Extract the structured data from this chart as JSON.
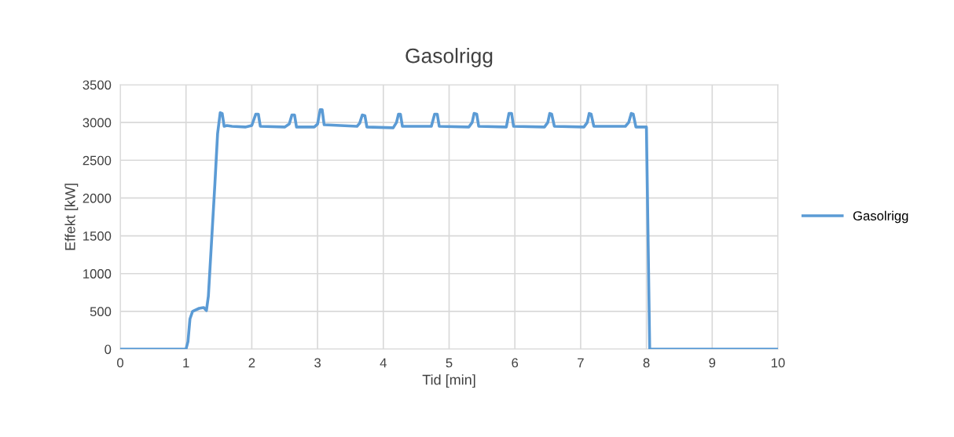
{
  "chart_data": {
    "type": "line",
    "title": "Gasolrigg",
    "xlabel": "Tid [min]",
    "ylabel": "Effekt [kW]",
    "xlim": [
      0,
      10
    ],
    "xticks": [
      0,
      1,
      2,
      3,
      4,
      5,
      6,
      7,
      8,
      9,
      10
    ],
    "ylim": [
      0,
      3500
    ],
    "yticks": [
      0,
      500,
      1000,
      1500,
      2000,
      2500,
      3000,
      3500
    ],
    "grid": true,
    "legend": "right",
    "marker": "none",
    "line_style": "solid",
    "series": [
      {
        "name": "Gasolrigg",
        "color": "#5b9bd5",
        "x": [
          0,
          1.0,
          1.03,
          1.06,
          1.1,
          1.2,
          1.27,
          1.31,
          1.34,
          1.38,
          1.44,
          1.48,
          1.52,
          1.55,
          1.58,
          1.62,
          1.7,
          1.9,
          2.0,
          2.06,
          2.1,
          2.13,
          2.5,
          2.57,
          2.61,
          2.65,
          2.68,
          2.95,
          3.0,
          3.04,
          3.07,
          3.1,
          3.6,
          3.64,
          3.68,
          3.72,
          3.75,
          4.15,
          4.2,
          4.23,
          4.26,
          4.29,
          4.73,
          4.78,
          4.82,
          4.85,
          5.3,
          5.35,
          5.38,
          5.42,
          5.45,
          5.87,
          5.91,
          5.95,
          5.98,
          6.45,
          6.5,
          6.53,
          6.56,
          6.6,
          7.05,
          7.1,
          7.13,
          7.16,
          7.2,
          7.68,
          7.73,
          7.77,
          7.8,
          7.84,
          8.0,
          8.05,
          10
        ],
        "values": [
          0,
          0,
          100,
          400,
          500,
          540,
          550,
          510,
          700,
          1300,
          2200,
          2850,
          3130,
          3120,
          2950,
          2960,
          2950,
          2940,
          2960,
          3110,
          3110,
          2950,
          2940,
          2980,
          3100,
          3100,
          2940,
          2940,
          2980,
          3170,
          3170,
          2970,
          2950,
          2990,
          3100,
          3090,
          2940,
          2930,
          3000,
          3110,
          3110,
          2950,
          2950,
          3110,
          3110,
          2950,
          2940,
          3000,
          3120,
          3110,
          2950,
          2940,
          3120,
          3120,
          2950,
          2940,
          3000,
          3120,
          3110,
          2950,
          2940,
          3000,
          3120,
          3110,
          2950,
          2950,
          3000,
          3120,
          3110,
          2940,
          2940,
          0,
          0
        ]
      }
    ]
  }
}
